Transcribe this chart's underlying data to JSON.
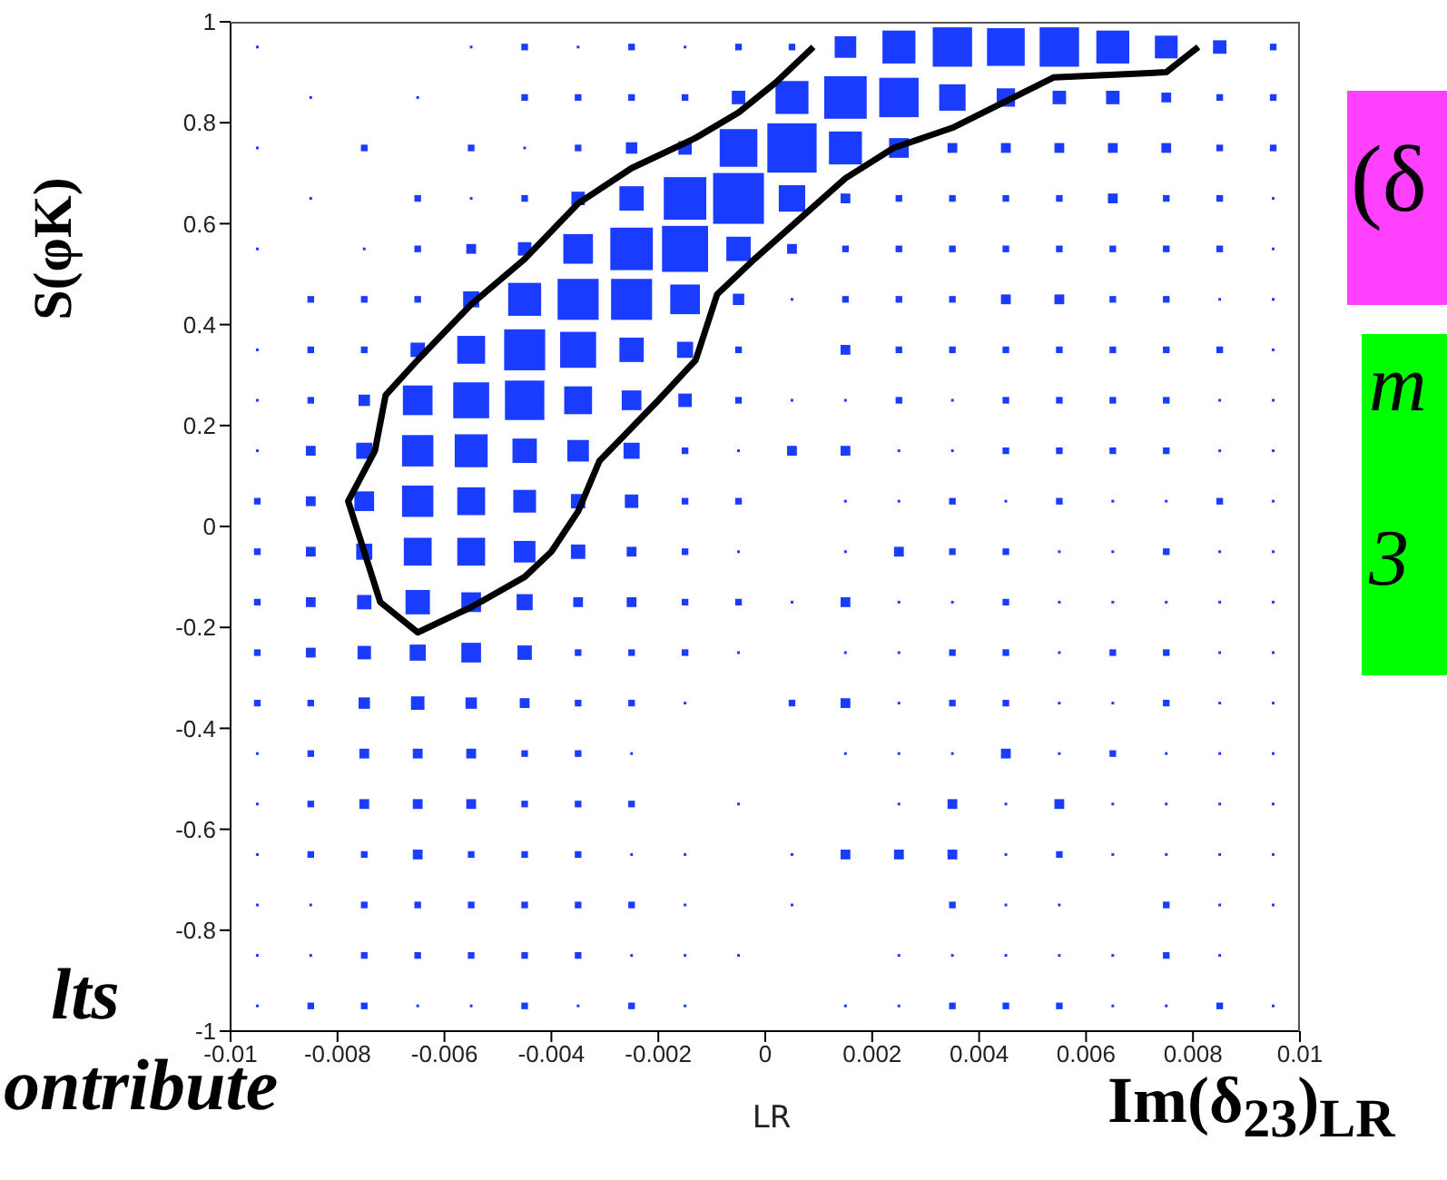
{
  "chart_data": {
    "type": "bubble",
    "ylabel": "S(φK)",
    "xlabel": "LR",
    "xlim": [
      -0.01,
      0.01
    ],
    "ylim": [
      -1,
      1
    ],
    "xticks": [
      -0.01,
      -0.008,
      -0.006,
      -0.004,
      -0.002,
      0,
      0.002,
      0.004,
      0.006,
      0.008,
      0.01
    ],
    "yticks": [
      -1,
      -0.8,
      -0.6,
      -0.4,
      -0.2,
      0,
      0.2,
      0.4,
      0.6,
      0.8,
      1
    ],
    "annotations": [
      "lts",
      "ontribute",
      "Im(δ$_{23}$)$_{LR}$",
      "(δ",
      "m",
      "3"
    ],
    "series": [
      {
        "type": "bubble",
        "color": "#1a3cff",
        "marker": "square",
        "x": [
          -0.0095,
          -0.0055,
          -0.0045,
          -0.0035,
          -0.0025,
          -0.0015,
          -0.0005,
          0.0005,
          0.0015,
          0.0025,
          0.0035,
          0.0045,
          0.0055,
          0.0065,
          0.0075,
          0.0085,
          0.0095,
          -0.0085,
          -0.0065,
          -0.0045,
          -0.0035,
          -0.0025,
          -0.0015,
          -0.0005,
          0.0005,
          0.0015,
          0.0025,
          0.0035,
          0.0045,
          0.0055,
          0.0065,
          0.0075,
          0.0085,
          0.0095,
          -0.0095,
          -0.0075,
          -0.0055,
          -0.0045,
          -0.0035,
          -0.0025,
          -0.0015,
          -0.0005,
          0.0005,
          0.0015,
          0.0025,
          0.0035,
          0.0045,
          0.0055,
          0.0065,
          0.0075,
          0.0085,
          0.0095,
          -0.0085,
          -0.0065,
          -0.0055,
          -0.0045,
          -0.0035,
          -0.0025,
          -0.0015,
          -0.0005,
          0.0005,
          0.0015,
          0.0025,
          0.0035,
          0.0045,
          0.0055,
          0.0065,
          0.0075,
          0.0085,
          0.0095,
          -0.0095,
          -0.0075,
          -0.0065,
          -0.0055,
          -0.0045,
          -0.0035,
          -0.0025,
          -0.0015,
          -0.0005,
          0.0005,
          0.0015,
          0.0025,
          0.0035,
          0.0045,
          0.0055,
          0.0065,
          0.0075,
          0.0085,
          0.0095,
          -0.0085,
          -0.0075,
          -0.0065,
          -0.0055,
          -0.0045,
          -0.0035,
          -0.0025,
          -0.0015,
          -0.0005,
          0.0005,
          0.0015,
          0.0025,
          0.0035,
          0.0045,
          0.0055,
          0.0065,
          0.0075,
          0.0085,
          0.0095,
          -0.0095,
          -0.0085,
          -0.0075,
          -0.0065,
          -0.0055,
          -0.0045,
          -0.0035,
          -0.0025,
          -0.0015,
          -0.0005,
          0.0015,
          0.0025,
          0.0035,
          0.0045,
          0.0055,
          0.0065,
          0.0075,
          0.0085,
          0.0095,
          -0.0095,
          -0.0085,
          -0.0075,
          -0.0065,
          -0.0055,
          -0.0045,
          -0.0035,
          -0.0025,
          -0.0015,
          -0.0005,
          0.0005,
          0.0015,
          0.0025,
          0.0035,
          0.0045,
          0.0055,
          0.0065,
          0.0075,
          0.0085,
          0.0095,
          -0.0095,
          -0.0085,
          -0.0075,
          -0.0065,
          -0.0055,
          -0.0045,
          -0.0035,
          -0.0025,
          -0.0015,
          -0.0005,
          0.0005,
          0.0015,
          0.0025,
          0.0035,
          0.0045,
          0.0055,
          0.0065,
          0.0075,
          0.0085,
          0.0095,
          -0.0095,
          -0.0085,
          -0.0075,
          -0.0065,
          -0.0055,
          -0.0045,
          -0.0035,
          -0.0025,
          -0.0015,
          -0.0005,
          0.0015,
          0.0025,
          0.0035,
          0.0045,
          0.0055,
          0.0065,
          0.0075,
          0.0085,
          0.0095,
          -0.0095,
          -0.0085,
          -0.0075,
          -0.0065,
          -0.0055,
          -0.0045,
          -0.0035,
          -0.0025,
          -0.0015,
          -0.0005,
          0.0015,
          0.0025,
          0.0035,
          0.0045,
          0.0055,
          0.0065,
          0.0075,
          0.0085,
          0.0095,
          -0.0095,
          -0.0085,
          -0.0075,
          -0.0065,
          -0.0055,
          -0.0045,
          -0.0035,
          -0.0025,
          -0.0015,
          -0.0005,
          0.0005,
          0.0015,
          0.0025,
          0.0035,
          0.0045,
          0.0055,
          0.0065,
          0.0075,
          0.0085,
          0.0095,
          -0.0095,
          -0.0085,
          -0.0075,
          -0.0065,
          -0.0055,
          -0.0045,
          -0.0035,
          -0.0025,
          -0.0015,
          -0.0005,
          0.0015,
          0.0025,
          0.0035,
          0.0045,
          0.0055,
          0.0065,
          0.0075,
          0.0085,
          0.0095,
          -0.0095,
          -0.0085,
          -0.0075,
          -0.0065,
          -0.0055,
          -0.0045,
          -0.0035,
          -0.0025,
          -0.0015,
          0.0005,
          0.0015,
          0.0025,
          0.0035,
          0.0045,
          0.0055,
          0.0065,
          0.0075,
          0.0085,
          0.0095,
          -0.0095,
          -0.0085,
          -0.0075,
          -0.0065,
          -0.0055,
          -0.0045,
          -0.0035,
          -0.0025,
          0.0015,
          0.0025,
          0.0035,
          0.0045,
          0.0055,
          0.0065,
          0.0075,
          0.0085,
          0.0095,
          -0.0095,
          -0.0085,
          -0.0075,
          -0.0065,
          -0.0055,
          -0.0045,
          -0.0035,
          -0.0025,
          -0.0005,
          0.0025,
          0.0035,
          0.0045,
          0.0055,
          0.0065,
          0.0075,
          0.0085,
          0.0095,
          -0.0095,
          -0.0085,
          -0.0075,
          -0.0065,
          -0.0055,
          -0.0045,
          -0.0035,
          -0.0025,
          -0.0015,
          0.0005,
          0.0015,
          0.0025,
          0.0035,
          0.0045,
          0.0055,
          0.0065,
          0.0075,
          0.0085,
          0.0095,
          -0.0095,
          -0.0085,
          -0.0075,
          -0.0065,
          -0.0055,
          -0.0045,
          -0.0035,
          -0.0025,
          -0.0015,
          0.0005,
          0.0035,
          0.0045,
          0.0055,
          0.0075,
          0.0085,
          0.0095,
          -0.0095,
          -0.0085,
          -0.0075,
          -0.0065,
          -0.0055,
          -0.0045,
          -0.0035,
          -0.0025,
          -0.0015,
          -0.0005,
          0.0025,
          0.0035,
          0.0045,
          0.0055,
          0.0065,
          0.0075,
          0.0085,
          -0.0095,
          -0.0085,
          -0.0075,
          -0.0065,
          -0.0055,
          -0.0045,
          -0.0035,
          -0.0025,
          -0.0015,
          0.0015,
          0.0025,
          0.0035,
          0.0045,
          0.0055,
          0.0065,
          0.0075,
          0.0085,
          0.0095
        ],
        "values": [
          0.95,
          0.95,
          0.95,
          0.95,
          0.95,
          0.95,
          0.95,
          0.95,
          0.95,
          0.95,
          0.95,
          0.95,
          0.95,
          0.95,
          0.95,
          0.95,
          0.95,
          0.85,
          0.85,
          0.85,
          0.85,
          0.85,
          0.85,
          0.85,
          0.85,
          0.85,
          0.85,
          0.85,
          0.85,
          0.85,
          0.85,
          0.85,
          0.85,
          0.85,
          0.75,
          0.75,
          0.75,
          0.75,
          0.75,
          0.75,
          0.75,
          0.75,
          0.75,
          0.75,
          0.75,
          0.75,
          0.75,
          0.75,
          0.75,
          0.75,
          0.75,
          0.75,
          0.65,
          0.65,
          0.65,
          0.65,
          0.65,
          0.65,
          0.65,
          0.65,
          0.65,
          0.65,
          0.65,
          0.65,
          0.65,
          0.65,
          0.65,
          0.65,
          0.65,
          0.65,
          0.55,
          0.55,
          0.55,
          0.55,
          0.55,
          0.55,
          0.55,
          0.55,
          0.55,
          0.55,
          0.55,
          0.55,
          0.55,
          0.55,
          0.55,
          0.55,
          0.55,
          0.55,
          0.55,
          0.45,
          0.45,
          0.45,
          0.45,
          0.45,
          0.45,
          0.45,
          0.45,
          0.45,
          0.45,
          0.45,
          0.45,
          0.45,
          0.45,
          0.45,
          0.45,
          0.45,
          0.45,
          0.45,
          0.35,
          0.35,
          0.35,
          0.35,
          0.35,
          0.35,
          0.35,
          0.35,
          0.35,
          0.35,
          0.35,
          0.35,
          0.35,
          0.35,
          0.35,
          0.35,
          0.35,
          0.35,
          0.35,
          0.25,
          0.25,
          0.25,
          0.25,
          0.25,
          0.25,
          0.25,
          0.25,
          0.25,
          0.25,
          0.25,
          0.25,
          0.25,
          0.25,
          0.25,
          0.25,
          0.25,
          0.25,
          0.25,
          0.25,
          0.15,
          0.15,
          0.15,
          0.15,
          0.15,
          0.15,
          0.15,
          0.15,
          0.15,
          0.15,
          0.15,
          0.15,
          0.15,
          0.15,
          0.15,
          0.15,
          0.15,
          0.15,
          0.15,
          0.15,
          0.05,
          0.05,
          0.05,
          0.05,
          0.05,
          0.05,
          0.05,
          0.05,
          0.05,
          0.05,
          0.05,
          0.05,
          0.05,
          0.05,
          0.05,
          0.05,
          0.05,
          0.05,
          0.05,
          -0.05,
          -0.05,
          -0.05,
          -0.05,
          -0.05,
          -0.05,
          -0.05,
          -0.05,
          -0.05,
          -0.05,
          -0.05,
          -0.05,
          -0.05,
          -0.05,
          -0.05,
          -0.05,
          -0.05,
          -0.05,
          -0.05,
          -0.15,
          -0.15,
          -0.15,
          -0.15,
          -0.15,
          -0.15,
          -0.15,
          -0.15,
          -0.15,
          -0.15,
          -0.15,
          -0.15,
          -0.15,
          -0.15,
          -0.15,
          -0.15,
          -0.15,
          -0.15,
          -0.15,
          -0.15,
          -0.25,
          -0.25,
          -0.25,
          -0.25,
          -0.25,
          -0.25,
          -0.25,
          -0.25,
          -0.25,
          -0.25,
          -0.25,
          -0.25,
          -0.25,
          -0.25,
          -0.25,
          -0.25,
          -0.25,
          -0.25,
          -0.25,
          -0.35,
          -0.35,
          -0.35,
          -0.35,
          -0.35,
          -0.35,
          -0.35,
          -0.35,
          -0.35,
          -0.35,
          -0.35,
          -0.35,
          -0.35,
          -0.35,
          -0.35,
          -0.35,
          -0.35,
          -0.35,
          -0.35,
          -0.45,
          -0.45,
          -0.45,
          -0.45,
          -0.45,
          -0.45,
          -0.45,
          -0.45,
          -0.45,
          -0.45,
          -0.45,
          -0.45,
          -0.45,
          -0.45,
          -0.45,
          -0.45,
          -0.45,
          -0.55,
          -0.55,
          -0.55,
          -0.55,
          -0.55,
          -0.55,
          -0.55,
          -0.55,
          -0.55,
          -0.55,
          -0.55,
          -0.55,
          -0.55,
          -0.55,
          -0.55,
          -0.55,
          -0.55,
          -0.65,
          -0.65,
          -0.65,
          -0.65,
          -0.65,
          -0.65,
          -0.65,
          -0.65,
          -0.65,
          -0.65,
          -0.65,
          -0.65,
          -0.65,
          -0.65,
          -0.65,
          -0.65,
          -0.65,
          -0.65,
          -0.65,
          -0.75,
          -0.75,
          -0.75,
          -0.75,
          -0.75,
          -0.75,
          -0.75,
          -0.75,
          -0.75,
          -0.75,
          -0.75,
          -0.75,
          -0.75,
          -0.75,
          -0.75,
          -0.75,
          -0.85,
          -0.85,
          -0.85,
          -0.85,
          -0.85,
          -0.85,
          -0.85,
          -0.85,
          -0.85,
          -0.85,
          -0.85,
          -0.85,
          -0.85,
          -0.85,
          -0.85,
          -0.85,
          -0.85,
          -0.95,
          -0.95,
          -0.95,
          -0.95,
          -0.95,
          -0.95,
          -0.95,
          -0.95,
          -0.95,
          -0.95,
          -0.95,
          -0.95,
          -0.95,
          -0.95,
          -0.95,
          -0.95,
          -0.95,
          -0.95
        ],
        "sizes": [
          0.002,
          0.002,
          0.017,
          0.002,
          0.017,
          0.002,
          0.017,
          0.017,
          0.18,
          0.42,
          0.6,
          0.55,
          0.6,
          0.42,
          0.2,
          0.07,
          0.017,
          0.002,
          0.002,
          0.017,
          0.017,
          0.017,
          0.017,
          0.07,
          0.42,
          0.7,
          0.6,
          0.27,
          0.13,
          0.07,
          0.07,
          0.037,
          0.017,
          0.017,
          0.002,
          0.017,
          0.017,
          0.002,
          0.017,
          0.05,
          0.07,
          0.55,
          0.94,
          0.42,
          0.15,
          0.037,
          0.037,
          0.037,
          0.037,
          0.037,
          0.017,
          0.017,
          0.002,
          0.017,
          0.002,
          0.017,
          0.07,
          0.23,
          0.7,
          1,
          0.27,
          0.037,
          0.017,
          0.017,
          0.017,
          0.017,
          0.037,
          0.017,
          0.017,
          0.002,
          0.002,
          0.002,
          0.017,
          0.037,
          0.07,
          0.34,
          0.7,
          0.82,
          0.23,
          0.037,
          0.017,
          0.017,
          0.017,
          0.017,
          0.017,
          0.017,
          0.017,
          0.017,
          0.002,
          0.017,
          0.017,
          0.017,
          0.1,
          0.42,
          0.65,
          0.65,
          0.34,
          0.05,
          0.002,
          0.017,
          0.017,
          0.017,
          0.037,
          0.037,
          0.017,
          0.017,
          0.002,
          0.002,
          0.002,
          0.017,
          0.017,
          0.08,
          0.3,
          0.65,
          0.5,
          0.23,
          0.1,
          0.017,
          0.037,
          0.017,
          0.017,
          0.017,
          0.017,
          0.017,
          0.017,
          0.017,
          0.002,
          0.002,
          0.017,
          0.05,
          0.34,
          0.5,
          0.6,
          0.3,
          0.15,
          0.07,
          0.017,
          0.002,
          0.002,
          0.017,
          0.002,
          0.017,
          0.017,
          0.017,
          0.017,
          0.002,
          0.002,
          0.002,
          0.037,
          0.1,
          0.38,
          0.42,
          0.23,
          0.18,
          0.1,
          0.017,
          0.002,
          0.037,
          0.037,
          0.002,
          0.002,
          0.017,
          0.017,
          0.017,
          0.017,
          0.002,
          0.002,
          0.017,
          0.037,
          0.15,
          0.38,
          0.3,
          0.2,
          0.08,
          0.07,
          0.017,
          0.017,
          0.002,
          0.002,
          0.017,
          0.002,
          0.017,
          0.002,
          0.002,
          0.017,
          0.002,
          0.017,
          0.037,
          0.1,
          0.3,
          0.3,
          0.18,
          0.08,
          0.037,
          0.017,
          0.002,
          0.002,
          0.037,
          0.017,
          0.017,
          0.002,
          0.002,
          0.017,
          0.002,
          0.002,
          0.017,
          0.037,
          0.08,
          0.23,
          0.15,
          0.1,
          0.037,
          0.037,
          0.017,
          0.017,
          0.002,
          0.037,
          0.002,
          0.002,
          0.017,
          0.002,
          0.002,
          0.002,
          0.002,
          0.002,
          0.017,
          0.037,
          0.07,
          0.1,
          0.15,
          0.08,
          0.017,
          0.017,
          0.017,
          0.002,
          0.002,
          0.002,
          0.017,
          0.017,
          0.002,
          0.017,
          0.017,
          0.002,
          0.002,
          0.017,
          0.017,
          0.05,
          0.07,
          0.05,
          0.037,
          0.017,
          0.017,
          0.002,
          0.017,
          0.037,
          0.002,
          0.017,
          0.017,
          0.002,
          0.002,
          0.017,
          0.002,
          0.002,
          0.002,
          0.017,
          0.037,
          0.037,
          0.037,
          0.017,
          0.017,
          0.002,
          0.002,
          0.002,
          0.002,
          0.037,
          0.002,
          0.017,
          0.002,
          0.002,
          0.002,
          0.002,
          0.017,
          0.037,
          0.037,
          0.037,
          0.017,
          0.017,
          0.017,
          0.002,
          0.002,
          0.037,
          0.002,
          0.037,
          0.002,
          0.002,
          0.002,
          0.002,
          0.002,
          0.017,
          0.017,
          0.037,
          0.017,
          0.017,
          0.017,
          0.002,
          0.002,
          0.002,
          0.037,
          0.037,
          0.037,
          0.002,
          0.017,
          0.002,
          0.002,
          0.002,
          0.002,
          0.002,
          0.002,
          0.017,
          0.017,
          0.017,
          0.017,
          0.017,
          0.017,
          0.002,
          0.002,
          0.017,
          0.002,
          0.002,
          0.017,
          0.002,
          0.002,
          0.002,
          0.002,
          0.017,
          0.017,
          0.017,
          0.017,
          0.017,
          0.002,
          0.002,
          0.002,
          0.002,
          0.002,
          0.002,
          0.002,
          0.002,
          0.017,
          0.002,
          0.002,
          0.017,
          0.017,
          0.002,
          0.002,
          0.017,
          0.002,
          0.017,
          0.002,
          0.002,
          0.002,
          0.017,
          0.017,
          0.017,
          0.002,
          0.002,
          0.017,
          0.002
        ]
      },
      {
        "type": "line",
        "color": "#000000",
        "x": [
          0.0009,
          0.0002,
          -0.0005,
          -0.0013,
          -0.0025,
          -0.0035,
          -0.0045,
          -0.0055,
          -0.0065,
          -0.0071,
          -0.0073,
          -0.0078,
          -0.0072,
          -0.0065,
          -0.0055,
          -0.0045,
          -0.004,
          -0.0035,
          -0.0031,
          -0.002,
          -0.0013,
          -0.0009,
          -0.0002,
          0.0015,
          0.0024,
          0.0035,
          0.0054,
          0.0075,
          0.0081
        ],
        "values": [
          0.95,
          0.88,
          0.82,
          0.77,
          0.71,
          0.64,
          0.53,
          0.44,
          0.33,
          0.26,
          0.15,
          0.05,
          -0.15,
          -0.21,
          -0.16,
          -0.1,
          -0.05,
          0.03,
          0.13,
          0.25,
          0.33,
          0.46,
          0.53,
          0.69,
          0.75,
          0.79,
          0.89,
          0.9,
          0.95
        ]
      }
    ]
  }
}
